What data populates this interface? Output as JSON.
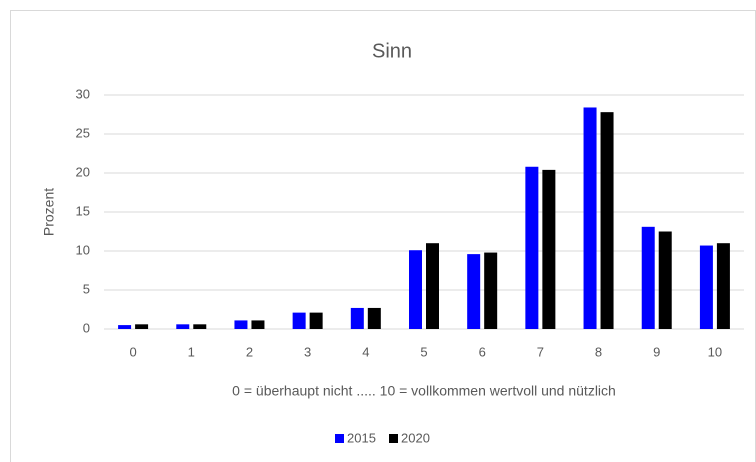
{
  "chart_data": {
    "type": "bar",
    "title": "Sinn",
    "y_label": "Prozent",
    "x_label": "0 = überhaupt nicht ..... 10 = vollkommen wertvoll und nützlich",
    "categories": [
      "0",
      "1",
      "2",
      "3",
      "4",
      "5",
      "6",
      "7",
      "8",
      "9",
      "10"
    ],
    "series": [
      {
        "name": "2015",
        "color": "#0000ff",
        "values": [
          0.5,
          0.6,
          1.1,
          2.1,
          2.7,
          10.1,
          9.6,
          20.8,
          28.4,
          13.1,
          10.7
        ]
      },
      {
        "name": "2020",
        "color": "#000000",
        "values": [
          0.6,
          0.6,
          1.1,
          2.1,
          2.7,
          11.0,
          9.8,
          20.4,
          27.8,
          12.5,
          11.0
        ]
      }
    ],
    "ylim": [
      0,
      30
    ],
    "yticks": [
      0,
      5,
      10,
      15,
      20,
      25,
      30
    ],
    "grid": true,
    "legend": "bottom"
  }
}
